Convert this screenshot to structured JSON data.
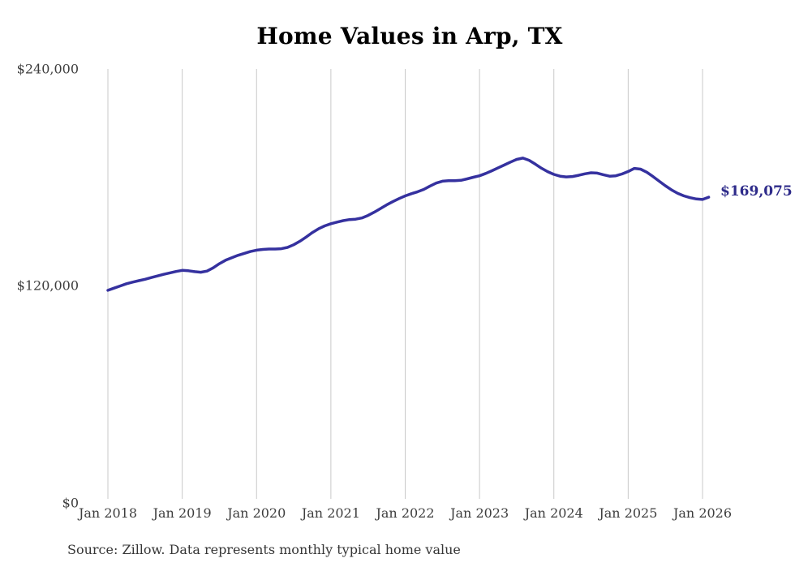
{
  "title": "Home Values in Arp, TX",
  "annotations": {
    "latest_value_label": "$169,075"
  },
  "source": {
    "text": "Source: Zillow. Data represents monthly typical home value"
  },
  "colors": {
    "line": "#35319f",
    "latest_label": "#2e2b8a",
    "grid": "#c9c9c9",
    "axis_text": "#3d3d3d",
    "title_text": "#000000",
    "source_text": "#363636",
    "background": "#ffffff"
  },
  "chart_data": {
    "type": "line",
    "title": "Home Values in Arp, TX",
    "xlabel": "",
    "ylabel": "",
    "x_tick_labels": [
      "Jan 2018",
      "Jan 2019",
      "Jan 2020",
      "Jan 2021",
      "Jan 2022",
      "Jan 2023",
      "Jan 2024",
      "Jan 2025",
      "Jan 2026"
    ],
    "y_tick_labels": [
      "$240,000",
      "$120,000",
      "$0"
    ],
    "ylim": [
      0,
      240000
    ],
    "x_range": [
      "2018-01",
      "2026-02"
    ],
    "grid": "vertical-only",
    "legend": "none",
    "series": [
      {
        "name": "Monthly typical home value (USD)",
        "x_start": "2018-01",
        "x_step_months": 1,
        "values": [
          117600,
          118800,
          120000,
          121200,
          122100,
          122900,
          123700,
          124600,
          125500,
          126400,
          127200,
          128000,
          128600,
          128400,
          127900,
          127600,
          128200,
          130000,
          132300,
          134200,
          135600,
          136900,
          138000,
          139000,
          139800,
          140200,
          140400,
          140400,
          140600,
          141300,
          142800,
          144700,
          147000,
          149500,
          151600,
          153200,
          154400,
          155300,
          156100,
          156700,
          156900,
          157600,
          159000,
          160800,
          162800,
          164800,
          166600,
          168300,
          169800,
          171000,
          172100,
          173400,
          175200,
          176900,
          177900,
          178200,
          178200,
          178400,
          179200,
          180100,
          180900,
          182200,
          183700,
          185300,
          186900,
          188500,
          190000,
          190700,
          189500,
          187400,
          185100,
          183200,
          181700,
          180700,
          180300,
          180500,
          181200,
          182000,
          182600,
          182400,
          181500,
          180700,
          180900,
          181900,
          183300,
          185000,
          184600,
          182900,
          180500,
          177900,
          175400,
          173100,
          171200,
          169800,
          168800,
          168100,
          167800,
          169075
        ],
        "latest_value": 169075,
        "latest_value_label": "$169,075"
      }
    ]
  }
}
